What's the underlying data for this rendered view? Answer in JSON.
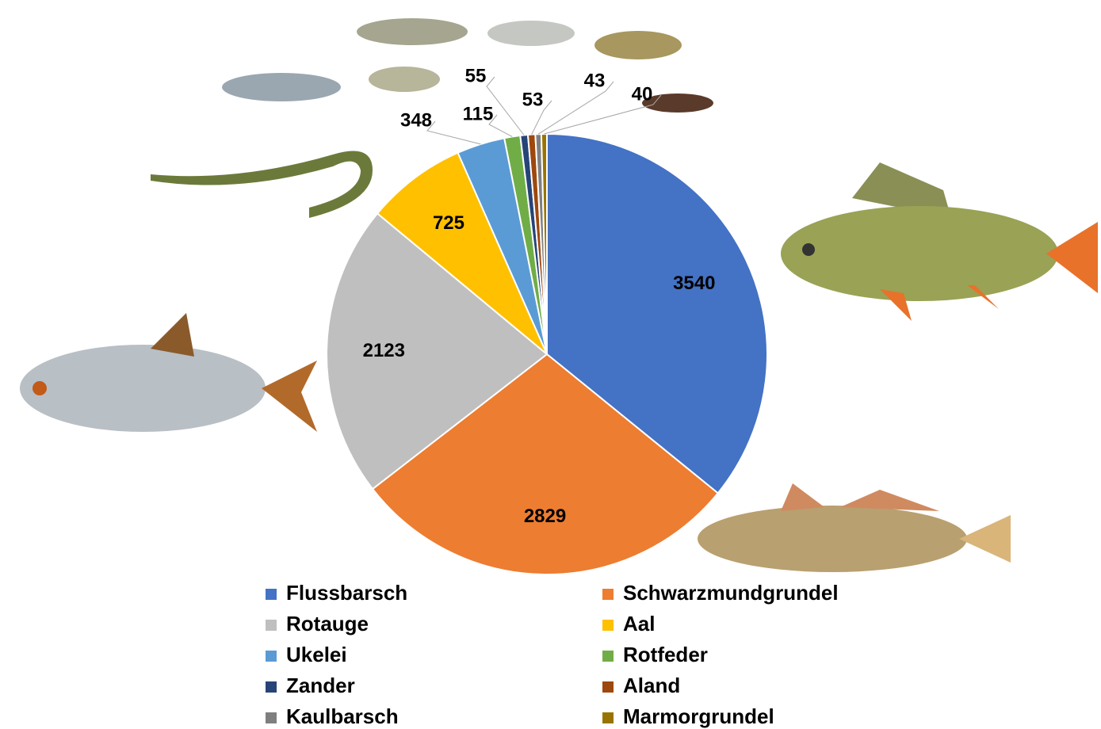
{
  "chart_data": {
    "type": "pie",
    "categories": [
      "Flussbarsch",
      "Schwarzmundgrundel",
      "Rotauge",
      "Aal",
      "Ukelei",
      "Rotfeder",
      "Zander",
      "Aland",
      "Kaulbarsch",
      "Marmorgrundel"
    ],
    "values": [
      3540,
      2829,
      2123,
      725,
      348,
      115,
      55,
      53,
      43,
      40
    ],
    "colors": [
      "#4472c4",
      "#ed7d31",
      "#bfbfbf",
      "#ffc000",
      "#5b9bd5",
      "#70ad47",
      "#264478",
      "#9e480e",
      "#7f7f7f",
      "#997300"
    ],
    "legend": "bottom"
  }
}
